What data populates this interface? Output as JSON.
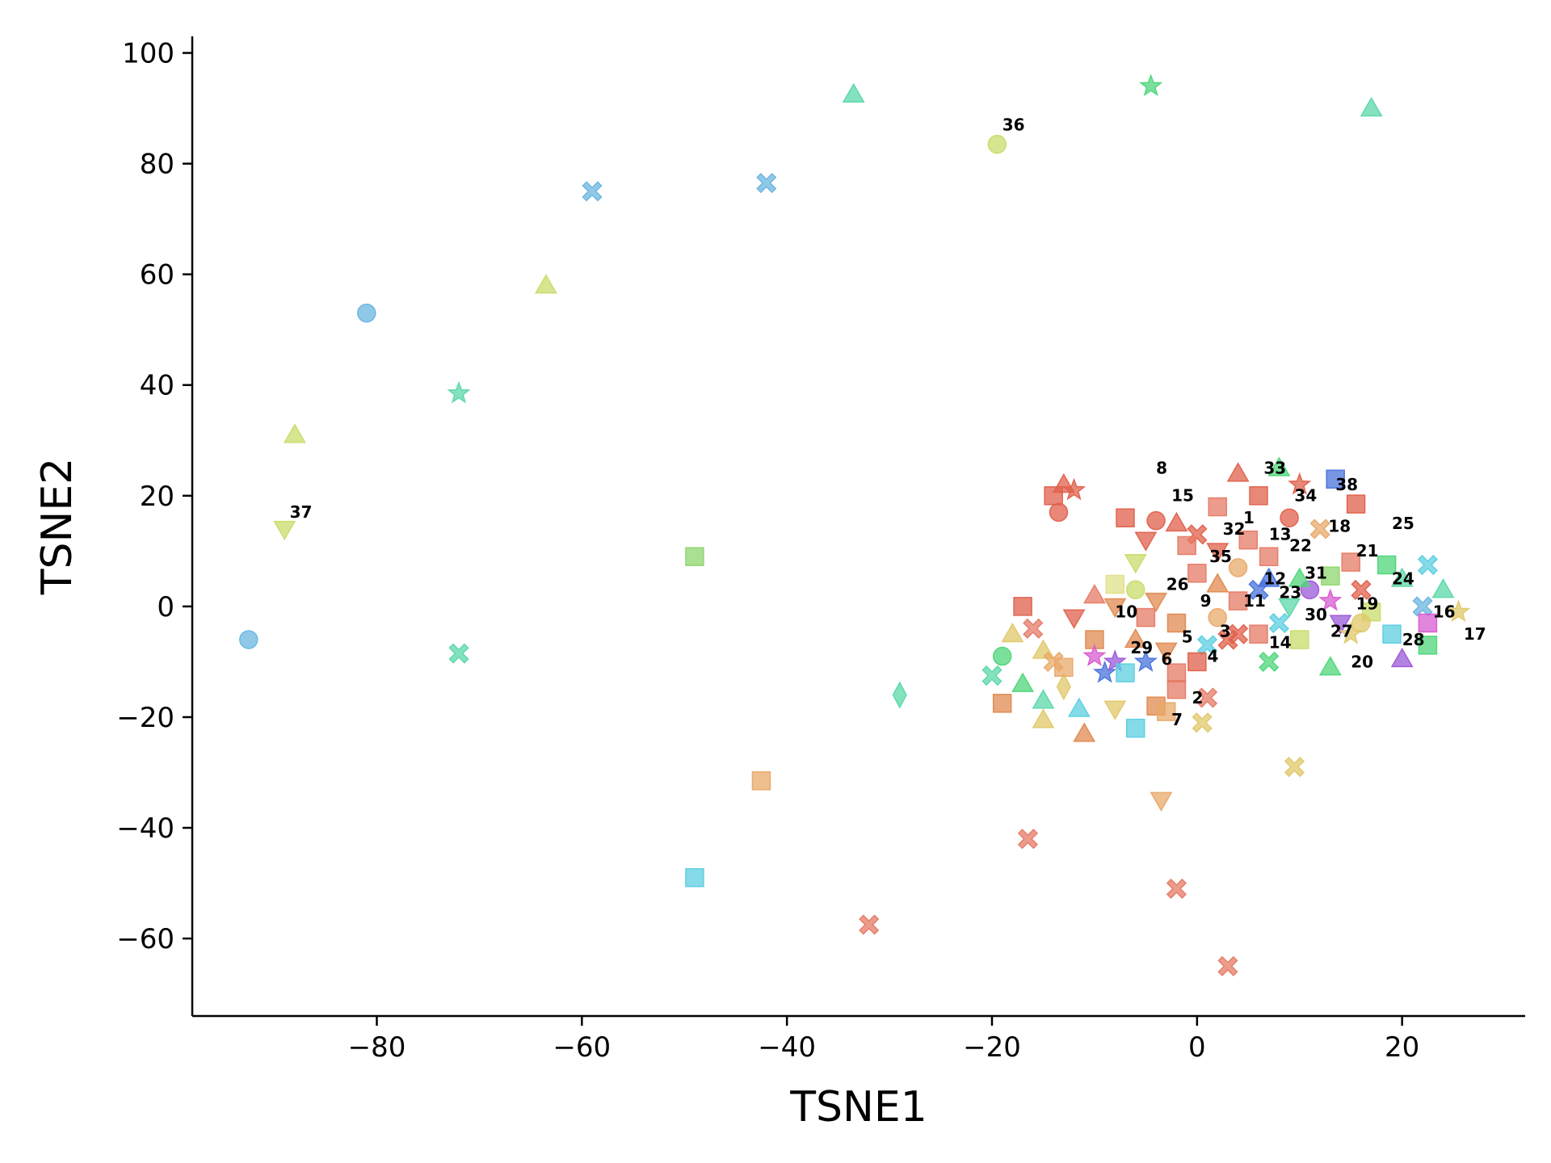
{
  "chart_data": {
    "type": "scatter",
    "title": "",
    "xlabel": "TSNE1",
    "ylabel": "TSNE2",
    "xlim": [
      -98,
      32
    ],
    "ylim": [
      -74,
      103
    ],
    "xticks": [
      -80,
      -60,
      -40,
      -20,
      0,
      20
    ],
    "yticks": [
      100,
      80,
      60,
      40,
      20,
      0,
      -20,
      -40,
      -60
    ],
    "grid": false,
    "legend": "none",
    "points": [
      {
        "x": -92.5,
        "y": -6,
        "marker": "circle",
        "color": "#6bb5e0"
      },
      {
        "x": -81,
        "y": 53,
        "marker": "circle",
        "color": "#6bb5e0"
      },
      {
        "x": -88,
        "y": 31,
        "marker": "triangle",
        "color": "#c8dc6a"
      },
      {
        "x": -89,
        "y": 14,
        "marker": "triangle-down",
        "color": "#c8dc6a"
      },
      {
        "x": -72,
        "y": 38.5,
        "marker": "star",
        "color": "#5bd8a8"
      },
      {
        "x": -72,
        "y": -8.5,
        "marker": "x",
        "color": "#5bd8a8"
      },
      {
        "x": -63.5,
        "y": 58,
        "marker": "triangle",
        "color": "#c8dc6a"
      },
      {
        "x": -59,
        "y": 75,
        "marker": "x",
        "color": "#6bb5e0"
      },
      {
        "x": -49,
        "y": 9,
        "marker": "square",
        "color": "#8ed66e"
      },
      {
        "x": -49,
        "y": -49,
        "marker": "square",
        "color": "#5ccfe0"
      },
      {
        "x": -42.5,
        "y": -31.5,
        "marker": "square",
        "color": "#e8a96a"
      },
      {
        "x": -42,
        "y": 76.5,
        "marker": "x",
        "color": "#6bb5e0"
      },
      {
        "x": -33.5,
        "y": 92.5,
        "marker": "triangle",
        "color": "#5bd8a8"
      },
      {
        "x": -32,
        "y": -57.5,
        "marker": "x",
        "color": "#e57b66"
      },
      {
        "x": -29,
        "y": -16,
        "marker": "diamond",
        "color": "#5bd8a8"
      },
      {
        "x": -19.5,
        "y": 83.5,
        "marker": "circle",
        "color": "#c8dc6a"
      },
      {
        "x": -16.5,
        "y": -42,
        "marker": "x",
        "color": "#e57b66"
      },
      {
        "x": -4.5,
        "y": 94,
        "marker": "star",
        "color": "#4fd67a"
      },
      {
        "x": -3.5,
        "y": -35,
        "marker": "triangle-down",
        "color": "#e8a96a"
      },
      {
        "x": -2,
        "y": -51,
        "marker": "x",
        "color": "#e57b66"
      },
      {
        "x": 3,
        "y": -65,
        "marker": "x",
        "color": "#e57b66"
      },
      {
        "x": 9.5,
        "y": -29,
        "marker": "x",
        "color": "#e0c86a"
      },
      {
        "x": 17,
        "y": 90,
        "marker": "triangle",
        "color": "#5bd8a8"
      },
      {
        "x": -13,
        "y": 22,
        "marker": "triangle",
        "color": "#e0604c"
      },
      {
        "x": -14,
        "y": 20,
        "marker": "square",
        "color": "#e0604c"
      },
      {
        "x": -12,
        "y": 21,
        "marker": "star",
        "color": "#e0604c"
      },
      {
        "x": -13.5,
        "y": 17,
        "marker": "circle",
        "color": "#e0604c"
      },
      {
        "x": -7,
        "y": 16,
        "marker": "square",
        "color": "#e0604c"
      },
      {
        "x": -4,
        "y": 15.5,
        "marker": "circle",
        "color": "#e0604c"
      },
      {
        "x": -2,
        "y": 15,
        "marker": "triangle",
        "color": "#e0604c"
      },
      {
        "x": 0,
        "y": 13,
        "marker": "x",
        "color": "#e0604c"
      },
      {
        "x": 2,
        "y": 18,
        "marker": "square",
        "color": "#e57b66"
      },
      {
        "x": 4,
        "y": 24,
        "marker": "triangle",
        "color": "#e0604c"
      },
      {
        "x": 6,
        "y": 20,
        "marker": "square",
        "color": "#e0604c"
      },
      {
        "x": 8,
        "y": 25,
        "marker": "triangle",
        "color": "#4fd67a"
      },
      {
        "x": 10,
        "y": 22,
        "marker": "star",
        "color": "#e0604c"
      },
      {
        "x": 13.5,
        "y": 23,
        "marker": "square",
        "color": "#4a73dc"
      },
      {
        "x": 15.5,
        "y": 18.5,
        "marker": "square",
        "color": "#e0604c"
      },
      {
        "x": 9,
        "y": 16,
        "marker": "circle",
        "color": "#e0604c"
      },
      {
        "x": 12,
        "y": 14,
        "marker": "x",
        "color": "#e8a96a"
      },
      {
        "x": 5,
        "y": 12,
        "marker": "square",
        "color": "#e57b66"
      },
      {
        "x": 2,
        "y": 10,
        "marker": "triangle-down",
        "color": "#e0604c"
      },
      {
        "x": -1,
        "y": 11,
        "marker": "square",
        "color": "#e57b66"
      },
      {
        "x": -5,
        "y": 12,
        "marker": "triangle-down",
        "color": "#e0604c"
      },
      {
        "x": -6,
        "y": 8,
        "marker": "triangle-down",
        "color": "#c8dc6a"
      },
      {
        "x": 4,
        "y": 7,
        "marker": "circle",
        "color": "#e8a96a"
      },
      {
        "x": 7,
        "y": 9,
        "marker": "square",
        "color": "#e57b66"
      },
      {
        "x": 15,
        "y": 8,
        "marker": "square",
        "color": "#e57b66"
      },
      {
        "x": 18.5,
        "y": 7.5,
        "marker": "square",
        "color": "#4fd67a"
      },
      {
        "x": 20,
        "y": 5,
        "marker": "triangle",
        "color": "#5bd8a8"
      },
      {
        "x": 22.5,
        "y": 7.5,
        "marker": "x",
        "color": "#5ccfe0"
      },
      {
        "x": 24,
        "y": 3,
        "marker": "triangle",
        "color": "#5bd8a8"
      },
      {
        "x": 25.5,
        "y": -1,
        "marker": "star",
        "color": "#e0c86a"
      },
      {
        "x": 22,
        "y": 0,
        "marker": "x",
        "color": "#6bb5e0"
      },
      {
        "x": 22.5,
        "y": -3,
        "marker": "square",
        "color": "#d85cd0"
      },
      {
        "x": 22.5,
        "y": -7,
        "marker": "square",
        "color": "#4fd67a"
      },
      {
        "x": 20,
        "y": -9.5,
        "marker": "triangle",
        "color": "#9b59d8"
      },
      {
        "x": 19,
        "y": -5,
        "marker": "square",
        "color": "#5ccfe0"
      },
      {
        "x": 13,
        "y": -11,
        "marker": "triangle",
        "color": "#4fd67a"
      },
      {
        "x": 7,
        "y": -10,
        "marker": "x",
        "color": "#4fd67a"
      },
      {
        "x": 13,
        "y": 1,
        "marker": "star",
        "color": "#d85cd0"
      },
      {
        "x": 14,
        "y": -3,
        "marker": "triangle-down",
        "color": "#9b59d8"
      },
      {
        "x": 11,
        "y": 3,
        "marker": "circle",
        "color": "#9b59d8"
      },
      {
        "x": 10,
        "y": 5,
        "marker": "triangle",
        "color": "#4fd67a"
      },
      {
        "x": 13,
        "y": 5.5,
        "marker": "square",
        "color": "#8ed66e"
      },
      {
        "x": 16,
        "y": 3,
        "marker": "x",
        "color": "#e0604c"
      },
      {
        "x": 17,
        "y": -1,
        "marker": "square",
        "color": "#c8dc6a"
      },
      {
        "x": 15,
        "y": -5,
        "marker": "star",
        "color": "#e0c86a"
      },
      {
        "x": 10,
        "y": -6,
        "marker": "square",
        "color": "#c8dc6a"
      },
      {
        "x": 8,
        "y": -3,
        "marker": "x",
        "color": "#5ccfe0"
      },
      {
        "x": 9,
        "y": 0,
        "marker": "triangle-down",
        "color": "#5bd8a8"
      },
      {
        "x": 7,
        "y": 5,
        "marker": "triangle",
        "color": "#4a73dc"
      },
      {
        "x": 6,
        "y": 3,
        "marker": "x",
        "color": "#4a73dc"
      },
      {
        "x": 4,
        "y": 1,
        "marker": "square",
        "color": "#e57b66"
      },
      {
        "x": 2,
        "y": -2,
        "marker": "circle",
        "color": "#e8a96a"
      },
      {
        "x": 4,
        "y": -5,
        "marker": "x",
        "color": "#e0604c"
      },
      {
        "x": 3,
        "y": -6,
        "marker": "x",
        "color": "#e0604c"
      },
      {
        "x": 6,
        "y": -5,
        "marker": "square",
        "color": "#e57b66"
      },
      {
        "x": 1,
        "y": -7,
        "marker": "x",
        "color": "#5ccfe0"
      },
      {
        "x": 0,
        "y": -10,
        "marker": "square",
        "color": "#e0604c"
      },
      {
        "x": -2,
        "y": -12,
        "marker": "square",
        "color": "#e57b66"
      },
      {
        "x": -2,
        "y": -15,
        "marker": "square",
        "color": "#e57b66"
      },
      {
        "x": 1,
        "y": -16.5,
        "marker": "x",
        "color": "#e57b66"
      },
      {
        "x": 0.5,
        "y": -21,
        "marker": "x",
        "color": "#e0c86a"
      },
      {
        "x": -4,
        "y": -18,
        "marker": "square",
        "color": "#e08a50"
      },
      {
        "x": -3,
        "y": -19,
        "marker": "square",
        "color": "#e8a96a"
      },
      {
        "x": -6,
        "y": -22,
        "marker": "square",
        "color": "#5ccfe0"
      },
      {
        "x": -8,
        "y": -18.5,
        "marker": "triangle-down",
        "color": "#e0c86a"
      },
      {
        "x": -11,
        "y": -23,
        "marker": "triangle",
        "color": "#e08a50"
      },
      {
        "x": -11.5,
        "y": -18.5,
        "marker": "triangle",
        "color": "#5ccfe0"
      },
      {
        "x": -15,
        "y": -20.5,
        "marker": "triangle",
        "color": "#e0c86a"
      },
      {
        "x": -15,
        "y": -17,
        "marker": "triangle",
        "color": "#5bd8a8"
      },
      {
        "x": -19,
        "y": -17.5,
        "marker": "square",
        "color": "#e08a50"
      },
      {
        "x": -20,
        "y": -12.5,
        "marker": "x",
        "color": "#5bd8a8"
      },
      {
        "x": -17,
        "y": -14,
        "marker": "triangle",
        "color": "#4fd67a"
      },
      {
        "x": -13,
        "y": -14.5,
        "marker": "diamond",
        "color": "#e0c86a"
      },
      {
        "x": -19,
        "y": -9,
        "marker": "circle",
        "color": "#4fd67a"
      },
      {
        "x": -18,
        "y": -5,
        "marker": "triangle",
        "color": "#e0c86a"
      },
      {
        "x": -17,
        "y": 0,
        "marker": "square",
        "color": "#e0604c"
      },
      {
        "x": -15,
        "y": -8,
        "marker": "triangle",
        "color": "#e0c86a"
      },
      {
        "x": -16,
        "y": -4,
        "marker": "x",
        "color": "#e57b66"
      },
      {
        "x": -14,
        "y": -10,
        "marker": "x",
        "color": "#e8a96a"
      },
      {
        "x": -13,
        "y": -11,
        "marker": "square",
        "color": "#e8a96a"
      },
      {
        "x": -12,
        "y": -2,
        "marker": "triangle-down",
        "color": "#e0604c"
      },
      {
        "x": -10,
        "y": -6,
        "marker": "square",
        "color": "#e08a50"
      },
      {
        "x": -9,
        "y": -12,
        "marker": "star",
        "color": "#4a73dc"
      },
      {
        "x": -8,
        "y": -10,
        "marker": "star",
        "color": "#9b59d8"
      },
      {
        "x": -10,
        "y": -9,
        "marker": "star",
        "color": "#d85cd0"
      },
      {
        "x": -7,
        "y": -12,
        "marker": "square",
        "color": "#5ccfe0"
      },
      {
        "x": -6,
        "y": -6,
        "marker": "triangle",
        "color": "#e08a50"
      },
      {
        "x": -5,
        "y": -2,
        "marker": "square",
        "color": "#e57b66"
      },
      {
        "x": -8,
        "y": 0,
        "marker": "triangle-down",
        "color": "#e08a50"
      },
      {
        "x": -10,
        "y": 2,
        "marker": "triangle",
        "color": "#e57b66"
      },
      {
        "x": -6,
        "y": 3,
        "marker": "circle",
        "color": "#c8dc6a"
      },
      {
        "x": -8,
        "y": 4,
        "marker": "square",
        "color": "#e0e08a"
      },
      {
        "x": -4,
        "y": 1,
        "marker": "triangle-down",
        "color": "#e08a50"
      },
      {
        "x": -2,
        "y": -3,
        "marker": "square",
        "color": "#e08a50"
      },
      {
        "x": -3,
        "y": -8,
        "marker": "triangle-down",
        "color": "#e08a50"
      },
      {
        "x": -5,
        "y": -10,
        "marker": "star",
        "color": "#4a73dc"
      },
      {
        "x": 2,
        "y": 4,
        "marker": "triangle",
        "color": "#e08a50"
      },
      {
        "x": 0,
        "y": 6,
        "marker": "square",
        "color": "#e57b66"
      },
      {
        "x": 16,
        "y": -3,
        "marker": "circle",
        "color": "#e0c86a"
      }
    ],
    "annotations": [
      {
        "x": 4.5,
        "y": 15,
        "text": "1"
      },
      {
        "x": -0.5,
        "y": -17.5,
        "text": "2"
      },
      {
        "x": 2.2,
        "y": -5.5,
        "text": "3"
      },
      {
        "x": 1,
        "y": -10,
        "text": "4"
      },
      {
        "x": -1.5,
        "y": -6.5,
        "text": "5"
      },
      {
        "x": -3.5,
        "y": -10.5,
        "text": "6"
      },
      {
        "x": -2.5,
        "y": -21.5,
        "text": "7"
      },
      {
        "x": -4,
        "y": 24,
        "text": "8"
      },
      {
        "x": 0.3,
        "y": 0,
        "text": "9"
      },
      {
        "x": -8,
        "y": -2,
        "text": "10"
      },
      {
        "x": 4.5,
        "y": 0,
        "text": "11"
      },
      {
        "x": 6.5,
        "y": 4,
        "text": "12"
      },
      {
        "x": 7,
        "y": 12,
        "text": "13"
      },
      {
        "x": 7,
        "y": -7.5,
        "text": "14"
      },
      {
        "x": -2.5,
        "y": 19,
        "text": "15"
      },
      {
        "x": 23,
        "y": -2,
        "text": "16"
      },
      {
        "x": 26,
        "y": -6,
        "text": "17"
      },
      {
        "x": 12.8,
        "y": 13.5,
        "text": "18"
      },
      {
        "x": 15.5,
        "y": -0.5,
        "text": "19"
      },
      {
        "x": 15,
        "y": -11,
        "text": "20"
      },
      {
        "x": 15.5,
        "y": 9,
        "text": "21"
      },
      {
        "x": 9,
        "y": 10,
        "text": "22"
      },
      {
        "x": 8,
        "y": 1.5,
        "text": "23"
      },
      {
        "x": 19,
        "y": 4,
        "text": "24"
      },
      {
        "x": 19,
        "y": 14,
        "text": "25"
      },
      {
        "x": -3,
        "y": 3,
        "text": "26"
      },
      {
        "x": 13,
        "y": -5.5,
        "text": "27"
      },
      {
        "x": 20,
        "y": -7,
        "text": "28"
      },
      {
        "x": -6.5,
        "y": -8.5,
        "text": "29"
      },
      {
        "x": 10.5,
        "y": -2.5,
        "text": "30"
      },
      {
        "x": 10.5,
        "y": 5,
        "text": "31"
      },
      {
        "x": 2.5,
        "y": 13,
        "text": "32"
      },
      {
        "x": 6.5,
        "y": 24,
        "text": "33"
      },
      {
        "x": 9.5,
        "y": 19,
        "text": "34"
      },
      {
        "x": 1.2,
        "y": 8,
        "text": "35"
      },
      {
        "x": -19,
        "y": 86,
        "text": "36"
      },
      {
        "x": -88.5,
        "y": 16,
        "text": "37"
      },
      {
        "x": 13.5,
        "y": 21,
        "text": "38"
      }
    ]
  }
}
